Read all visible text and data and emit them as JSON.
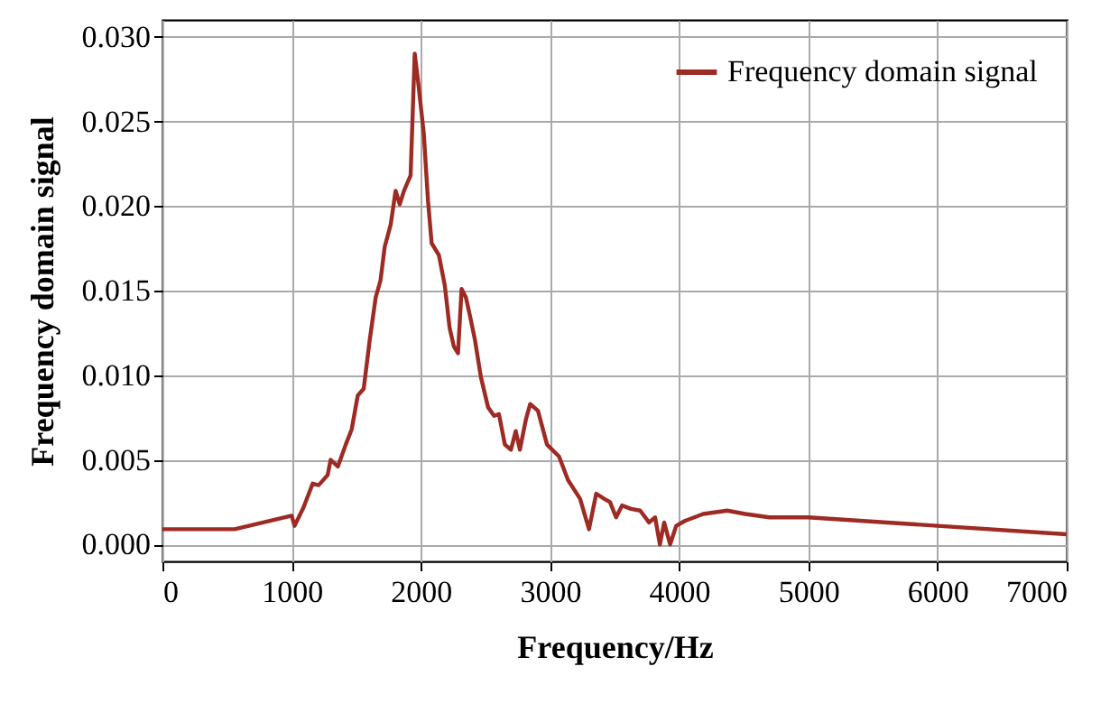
{
  "chart_data": {
    "type": "line",
    "xlabel": "Frequency/Hz",
    "ylabel": "Frequency domain signal",
    "xlim": [
      0,
      7000
    ],
    "xticks": [
      0,
      1000,
      2000,
      3000,
      4000,
      5000,
      6000,
      7000
    ],
    "ylim": [
      -0.001,
      0.031
    ],
    "yticks": [
      {
        "value": 0,
        "label": "0.000"
      },
      {
        "value": 0.005,
        "label": "0.005"
      },
      {
        "value": 0.01,
        "label": "0.010"
      },
      {
        "value": 0.015,
        "label": "0.015"
      },
      {
        "value": 0.02,
        "label": "0.020"
      },
      {
        "value": 0.025,
        "label": "0.025"
      },
      {
        "value": 0.03,
        "label": "0.030"
      }
    ],
    "grid": true,
    "legend": "top right",
    "line_style": "solid",
    "series": [
      {
        "name": "Frequency domain signal",
        "color": "#9e2a24",
        "x": [
          0,
          559,
          1000,
          1023,
          1093,
          1163,
          1209,
          1279,
          1302,
          1358,
          1419,
          1465,
          1512,
          1558,
          1605,
          1651,
          1688,
          1721,
          1767,
          1805,
          1837,
          1870,
          1898,
          1921,
          1953,
          1977,
          2023,
          2056,
          2084,
          2140,
          2186,
          2223,
          2256,
          2288,
          2316,
          2349,
          2381,
          2419,
          2465,
          2521,
          2567,
          2605,
          2651,
          2698,
          2735,
          2767,
          2814,
          2847,
          2907,
          2977,
          3070,
          3140,
          3233,
          3302,
          3358,
          3419,
          3465,
          3512,
          3558,
          3628,
          3698,
          3767,
          3814,
          3851,
          3884,
          3930,
          3977,
          4047,
          4186,
          4372,
          4512,
          4698,
          5000,
          7000
        ],
        "values": [
          0.0009,
          0.0009,
          0.0017,
          0.0011,
          0.0022,
          0.0036,
          0.0035,
          0.0041,
          0.005,
          0.0046,
          0.0059,
          0.0068,
          0.0088,
          0.0092,
          0.0121,
          0.0146,
          0.0156,
          0.0176,
          0.0189,
          0.0209,
          0.0201,
          0.0209,
          0.0214,
          0.0218,
          0.029,
          0.0275,
          0.0243,
          0.0203,
          0.0178,
          0.0171,
          0.0153,
          0.0128,
          0.0117,
          0.0113,
          0.0151,
          0.0146,
          0.0135,
          0.0121,
          0.0099,
          0.0081,
          0.0076,
          0.0077,
          0.0059,
          0.0056,
          0.0067,
          0.0056,
          0.0074,
          0.0083,
          0.0079,
          0.0059,
          0.0052,
          0.0038,
          0.0027,
          0.0009,
          0.003,
          0.0027,
          0.0025,
          0.0016,
          0.0023,
          0.0021,
          0.002,
          0.0013,
          0.0016,
          0.0,
          0.0013,
          0.0,
          0.0011,
          0.0014,
          0.0018,
          0.002,
          0.0018,
          0.0016,
          0.0016,
          0.0006
        ]
      }
    ]
  }
}
